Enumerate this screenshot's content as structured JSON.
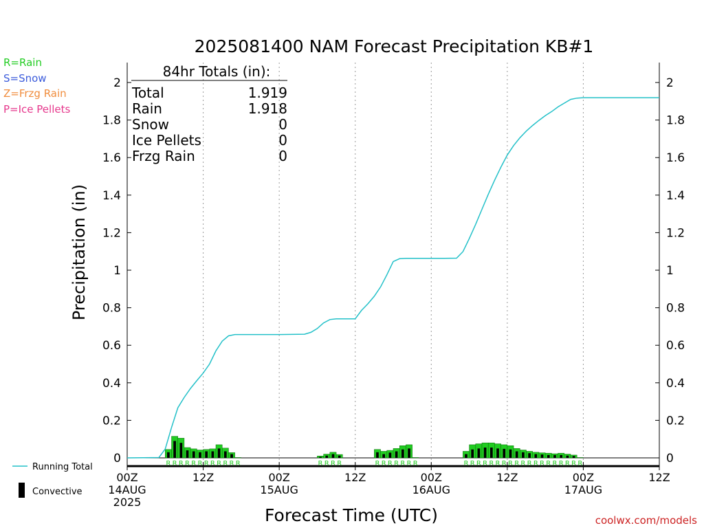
{
  "chart_data": {
    "type": "bar",
    "title": "2025081400 NAM Forecast Precipitation KB#1",
    "xlabel": "Forecast Time (UTC)",
    "ylabel": "Precipitation (in)",
    "ylim": [
      0,
      2.1
    ],
    "xlim_hours": [
      0,
      84
    ],
    "yticks": [
      "0",
      "0.2",
      "0.4",
      "0.6",
      "0.8",
      "1",
      "1.2",
      "1.4",
      "1.6",
      "1.8",
      "2"
    ],
    "xticks": [
      {
        "hour": 0,
        "lines": [
          "00Z",
          "14AUG",
          "2025"
        ]
      },
      {
        "hour": 12,
        "lines": [
          "12Z"
        ]
      },
      {
        "hour": 24,
        "lines": [
          "00Z",
          "15AUG"
        ]
      },
      {
        "hour": 36,
        "lines": [
          "12Z"
        ]
      },
      {
        "hour": 48,
        "lines": [
          "00Z",
          "16AUG"
        ]
      },
      {
        "hour": 60,
        "lines": [
          "12Z"
        ]
      },
      {
        "hour": 72,
        "lines": [
          "00Z",
          "17AUG"
        ]
      },
      {
        "hour": 84,
        "lines": [
          "12Z"
        ]
      }
    ],
    "grid": "vertical dotted at 12Z/00Z",
    "precip_type_legend": [
      {
        "label": "R=Rain",
        "color": "#22cc22"
      },
      {
        "label": "S=Snow",
        "color": "#3b5bdb"
      },
      {
        "label": "Z=Frzg Rain",
        "color": "#f08c3c"
      },
      {
        "label": "P=Ice Pellets",
        "color": "#e6378c"
      }
    ],
    "series_legend": [
      {
        "label": "Running Total",
        "color": "#22c0c8"
      },
      {
        "label": "Convective",
        "color": "#000000"
      }
    ],
    "totals_box": {
      "header": "84hr Totals (in):",
      "rows": [
        {
          "label": "Total",
          "value": "1.919"
        },
        {
          "label": "Rain",
          "value": "1.918"
        },
        {
          "label": "Snow",
          "value": "0"
        },
        {
          "label": "Ice Pellets",
          "value": "0"
        },
        {
          "label": "Frzg Rain",
          "value": "0"
        }
      ]
    },
    "hourly_precip": {
      "hours": [
        6,
        7,
        8,
        9,
        10,
        11,
        12,
        13,
        14,
        15,
        16,
        17,
        30,
        31,
        32,
        33,
        39,
        40,
        41,
        42,
        43,
        44,
        45,
        53,
        54,
        55,
        56,
        57,
        58,
        59,
        60,
        61,
        62,
        63,
        64,
        65,
        66,
        67,
        68,
        69,
        70,
        71
      ],
      "values": [
        0.045,
        0.115,
        0.105,
        0.055,
        0.048,
        0.042,
        0.045,
        0.048,
        0.07,
        0.052,
        0.028,
        0.002,
        0.01,
        0.02,
        0.03,
        0.018,
        0.045,
        0.035,
        0.04,
        0.05,
        0.065,
        0.07,
        0.002,
        0.035,
        0.07,
        0.075,
        0.08,
        0.08,
        0.075,
        0.07,
        0.065,
        0.05,
        0.042,
        0.035,
        0.03,
        0.027,
        0.025,
        0.022,
        0.025,
        0.02,
        0.015,
        0.002
      ],
      "convective": [
        0.03,
        0.09,
        0.08,
        0.04,
        0.035,
        0.03,
        0.035,
        0.035,
        0.05,
        0.035,
        0.02,
        0.0,
        0.005,
        0.012,
        0.02,
        0.012,
        0.03,
        0.02,
        0.028,
        0.035,
        0.045,
        0.05,
        0.0,
        0.02,
        0.045,
        0.05,
        0.055,
        0.055,
        0.05,
        0.048,
        0.045,
        0.035,
        0.03,
        0.025,
        0.02,
        0.018,
        0.015,
        0.015,
        0.015,
        0.012,
        0.01,
        0.0
      ],
      "type_marks": [
        "R",
        "R",
        "R",
        "R",
        "R",
        "R",
        "R",
        "R",
        "R",
        "R",
        "R",
        "R",
        "R",
        "R",
        "R",
        "R",
        "R",
        "R",
        "R",
        "R",
        "R",
        "R",
        "R",
        "R",
        "R",
        "R",
        "R",
        "R",
        "R",
        "R",
        "R",
        "R",
        "R",
        "R",
        "R",
        "R",
        "R",
        "R",
        "R",
        "R",
        "R",
        "R"
      ]
    },
    "running_total": {
      "hours": [
        0,
        5,
        6,
        7,
        8,
        9,
        10,
        11,
        12,
        13,
        14,
        15,
        16,
        17,
        18,
        20,
        22,
        24,
        26,
        28,
        29,
        30,
        31,
        32,
        33,
        34,
        35,
        36,
        37,
        38,
        39,
        40,
        41,
        42,
        43,
        44,
        45,
        46,
        47,
        48,
        50,
        52,
        53,
        54,
        55,
        56,
        57,
        58,
        59,
        60,
        61,
        62,
        63,
        64,
        65,
        66,
        67,
        68,
        69,
        70,
        71,
        72,
        74,
        76,
        78,
        80,
        82,
        84
      ],
      "values": [
        0,
        0.002,
        0.047,
        0.162,
        0.267,
        0.322,
        0.37,
        0.412,
        0.452,
        0.5,
        0.57,
        0.622,
        0.65,
        0.657,
        0.657,
        0.657,
        0.657,
        0.657,
        0.658,
        0.659,
        0.669,
        0.689,
        0.719,
        0.737,
        0.741,
        0.741,
        0.741,
        0.741,
        0.786,
        0.821,
        0.861,
        0.911,
        0.976,
        1.046,
        1.061,
        1.063,
        1.063,
        1.063,
        1.063,
        1.063,
        1.063,
        1.064,
        1.099,
        1.169,
        1.244,
        1.324,
        1.404,
        1.479,
        1.549,
        1.614,
        1.664,
        1.706,
        1.741,
        1.771,
        1.798,
        1.823,
        1.845,
        1.87,
        1.89,
        1.91,
        1.917,
        1.919,
        1.919,
        1.919,
        1.919,
        1.919,
        1.919,
        1.919
      ]
    }
  },
  "footer": {
    "credit": "coolwx.com/models"
  }
}
